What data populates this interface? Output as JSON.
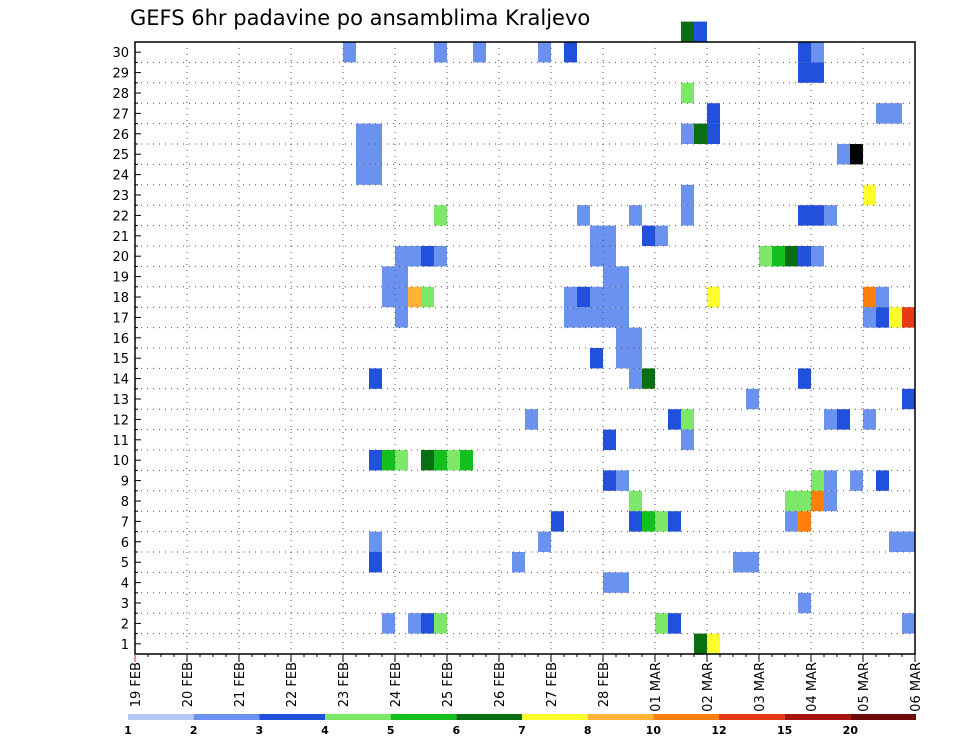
{
  "title": "GEFS 6hr padavine po ansamblima Kraljevo",
  "chart_data": {
    "type": "heatmap",
    "title": "GEFS 6hr padavine po ansamblima Kraljevo",
    "xlabel": "",
    "ylabel": "",
    "x_ticks": [
      "19 FEB",
      "20 FEB",
      "21 FEB",
      "22 FEB",
      "23 FEB",
      "24 FEB",
      "25 FEB",
      "26 FEB",
      "27 FEB",
      "28 FEB",
      "01 MAR",
      "02 MAR",
      "03 MAR",
      "04 MAR",
      "05 MAR",
      "06 MAR"
    ],
    "y_ticks": [
      "1",
      "2",
      "3",
      "4",
      "5",
      "6",
      "7",
      "8",
      "9",
      "10",
      "11",
      "12",
      "13",
      "14",
      "15",
      "16",
      "17",
      "18",
      "19",
      "20",
      "21",
      "22",
      "23",
      "24",
      "25",
      "26",
      "27",
      "28",
      "29",
      "30"
    ],
    "steps_per_day": 4,
    "ylim": [
      0,
      30
    ],
    "grid": true,
    "legend": {
      "position": "bottom",
      "bounds": [
        "1",
        "2",
        "3",
        "4",
        "5",
        "6",
        "7",
        "8",
        "10",
        "12",
        "15",
        "20"
      ],
      "colors": [
        "#b4c8f5",
        "#6b92ee",
        "#2150dc",
        "#7de868",
        "#14c01e",
        "#0a6e12",
        "#ffff2e",
        "#ffb437",
        "#ff7f0a",
        "#e63a14",
        "#a8140e",
        "#6e0a0a"
      ]
    },
    "cells": [
      [
        29,
        16,
        17,
        1
      ],
      [
        29,
        23,
        24,
        1
      ],
      [
        29,
        26,
        27,
        1
      ],
      [
        29,
        31,
        32,
        1
      ],
      [
        29,
        33,
        34,
        2
      ],
      [
        29,
        51,
        52,
        2
      ],
      [
        29,
        52,
        53,
        1
      ],
      [
        28,
        51,
        53,
        2
      ],
      [
        30,
        42,
        43,
        5
      ],
      [
        30,
        43,
        44,
        2
      ],
      [
        27,
        42,
        43,
        3
      ],
      [
        26,
        44,
        45,
        2
      ],
      [
        26,
        57,
        59,
        1
      ],
      [
        25,
        17,
        19,
        1
      ],
      [
        25,
        42,
        43,
        1
      ],
      [
        25,
        43,
        44,
        5
      ],
      [
        25,
        44,
        45,
        2
      ],
      [
        24,
        17,
        19,
        1
      ],
      [
        24,
        54,
        55,
        1
      ],
      [
        24,
        55,
        56,
        13
      ],
      [
        23,
        17,
        19,
        1
      ],
      [
        22,
        42,
        43,
        1
      ],
      [
        22,
        56,
        57,
        6
      ],
      [
        21,
        23,
        24,
        3
      ],
      [
        21,
        34,
        35,
        1
      ],
      [
        21,
        38,
        39,
        1
      ],
      [
        21,
        42,
        43,
        1
      ],
      [
        21,
        51,
        53,
        2
      ],
      [
        21,
        53,
        54,
        1
      ],
      [
        20,
        35,
        37,
        1
      ],
      [
        20,
        39,
        40,
        2
      ],
      [
        20,
        40,
        41,
        1
      ],
      [
        19,
        35,
        37,
        1
      ],
      [
        19,
        20,
        22,
        1
      ],
      [
        19,
        22,
        23,
        2
      ],
      [
        19,
        23,
        24,
        1
      ],
      [
        19,
        48,
        49,
        3
      ],
      [
        19,
        49,
        50,
        4
      ],
      [
        19,
        50,
        51,
        5
      ],
      [
        19,
        51,
        52,
        2
      ],
      [
        19,
        52,
        53,
        1
      ],
      [
        18,
        19,
        21,
        1
      ],
      [
        18,
        36,
        38,
        1
      ],
      [
        17,
        19,
        21,
        1
      ],
      [
        17,
        21,
        22,
        7
      ],
      [
        17,
        22,
        23,
        3
      ],
      [
        17,
        33,
        34,
        1
      ],
      [
        17,
        34,
        35,
        2
      ],
      [
        17,
        35,
        38,
        1
      ],
      [
        17,
        44,
        45,
        6
      ],
      [
        17,
        56,
        57,
        8
      ],
      [
        17,
        57,
        58,
        1
      ],
      [
        16,
        20,
        21,
        1
      ],
      [
        16,
        33,
        38,
        1
      ],
      [
        16,
        56,
        57,
        1
      ],
      [
        16,
        57,
        58,
        2
      ],
      [
        16,
        58,
        59,
        6
      ],
      [
        16,
        59,
        60,
        9
      ],
      [
        15,
        37,
        39,
        1
      ],
      [
        14,
        35,
        36,
        2
      ],
      [
        14,
        37,
        39,
        1
      ],
      [
        13,
        18,
        19,
        2
      ],
      [
        13,
        38,
        39,
        1
      ],
      [
        13,
        39,
        40,
        5
      ],
      [
        13,
        51,
        52,
        2
      ],
      [
        12,
        47,
        48,
        1
      ],
      [
        12,
        59,
        60,
        2
      ],
      [
        11,
        30,
        31,
        1
      ],
      [
        11,
        41,
        42,
        2
      ],
      [
        11,
        42,
        43,
        3
      ],
      [
        11,
        53,
        54,
        1
      ],
      [
        11,
        54,
        55,
        2
      ],
      [
        11,
        56,
        57,
        1
      ],
      [
        10,
        36,
        37,
        2
      ],
      [
        10,
        42,
        43,
        1
      ],
      [
        9,
        18,
        19,
        2
      ],
      [
        9,
        19,
        20,
        4
      ],
      [
        9,
        20,
        21,
        3
      ],
      [
        9,
        22,
        23,
        5
      ],
      [
        9,
        23,
        24,
        4
      ],
      [
        9,
        24,
        25,
        3
      ],
      [
        9,
        25,
        26,
        4
      ],
      [
        8,
        36,
        37,
        2
      ],
      [
        8,
        37,
        38,
        1
      ],
      [
        8,
        52,
        53,
        3
      ],
      [
        8,
        53,
        54,
        1
      ],
      [
        8,
        55,
        56,
        1
      ],
      [
        8,
        57,
        58,
        2
      ],
      [
        7,
        38,
        39,
        3
      ],
      [
        7,
        50,
        52,
        3
      ],
      [
        7,
        52,
        53,
        8
      ],
      [
        7,
        53,
        54,
        1
      ],
      [
        6,
        32,
        33,
        2
      ],
      [
        6,
        38,
        39,
        2
      ],
      [
        6,
        39,
        40,
        4
      ],
      [
        6,
        40,
        41,
        3
      ],
      [
        6,
        41,
        42,
        2
      ],
      [
        6,
        50,
        51,
        1
      ],
      [
        6,
        51,
        52,
        8
      ],
      [
        5,
        18,
        19,
        1
      ],
      [
        5,
        31,
        32,
        1
      ],
      [
        5,
        58,
        60,
        1
      ],
      [
        4,
        18,
        19,
        2
      ],
      [
        4,
        29,
        30,
        1
      ],
      [
        4,
        46,
        48,
        1
      ],
      [
        3,
        36,
        38,
        1
      ],
      [
        2,
        51,
        52,
        1
      ],
      [
        1,
        19,
        20,
        1
      ],
      [
        1,
        21,
        22,
        1
      ],
      [
        1,
        22,
        23,
        2
      ],
      [
        1,
        23,
        24,
        3
      ],
      [
        1,
        40,
        41,
        3
      ],
      [
        1,
        41,
        42,
        2
      ],
      [
        1,
        59,
        60,
        1
      ],
      [
        0,
        43,
        44,
        5
      ],
      [
        0,
        44,
        45,
        6
      ]
    ]
  }
}
